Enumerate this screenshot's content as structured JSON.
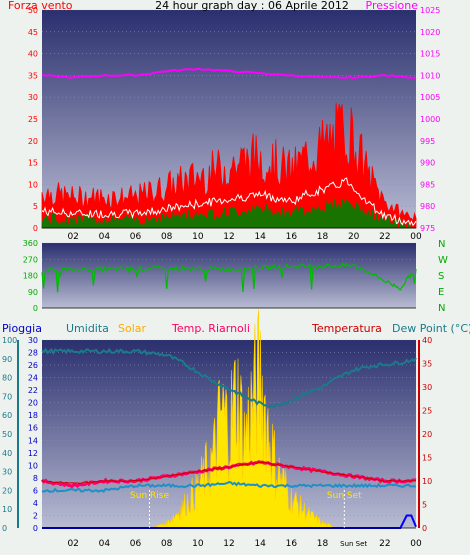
{
  "top": {
    "title": "24 hour graph day : 06 Aprile 2012",
    "left_label": "Forza vento",
    "right_label": "Pressione",
    "left_ticks": [
      "0",
      "5",
      "10",
      "15",
      "20",
      "25",
      "30",
      "35",
      "40",
      "45",
      "50"
    ],
    "right_ticks": [
      "975",
      "980",
      "985",
      "990",
      "995",
      "1000",
      "1005",
      "1010",
      "1015",
      "1020",
      "1025"
    ]
  },
  "middle": {
    "left_ticks": [
      "0",
      "90",
      "180",
      "270",
      "360"
    ],
    "compass": [
      "N",
      "W",
      "S",
      "E",
      "N"
    ]
  },
  "bottom": {
    "labels": {
      "pioggia": "Pioggia",
      "umidita": "Umidita",
      "solar": "Solar",
      "temp_riarnoli": "Temp. Riarnoli",
      "temperatura": "Temperatura",
      "dew_point": "Dew Point (°C)"
    },
    "hum_ticks": [
      "0",
      "10",
      "20",
      "30",
      "40",
      "50",
      "60",
      "70",
      "80",
      "90",
      "100"
    ],
    "left_ticks": [
      "0",
      "2",
      "4",
      "6",
      "8",
      "10",
      "12",
      "14",
      "16",
      "18",
      "20",
      "22",
      "24",
      "26",
      "28",
      "30"
    ],
    "right_ticks": [
      "0",
      "5",
      "10",
      "15",
      "20",
      "25",
      "30",
      "35",
      "40"
    ],
    "sun_rise": "Sun Rise",
    "sun_set": "Sun Set"
  },
  "x_ticks": [
    "02",
    "04",
    "06",
    "08",
    "10",
    "12",
    "14",
    "16",
    "18",
    "20",
    "22",
    "00"
  ],
  "x_ticks_bottom": [
    "02",
    "04",
    "06",
    "08",
    "10",
    "12",
    "14",
    "16",
    "18",
    "Sun Set",
    "22",
    "00"
  ],
  "colors": {
    "wind_gust": "#ff0000",
    "wind_avg": "#ffffff",
    "wind_low": "#008000",
    "pressure": "#ff00ff",
    "direction": "#00bb00",
    "humidity": "#1a7a8a",
    "solar": "#ffcc00",
    "temp_riarnoli": "#ff0066",
    "temperatura": "#cc0000",
    "dew_point": "#1e90c8",
    "rain": "#0000ff"
  },
  "chart_data": [
    {
      "type": "line",
      "title": "24 hour graph day : 06 Aprile 2012",
      "series": [
        {
          "name": "Forza vento",
          "x_hours": [
            0,
            2,
            4,
            6,
            8,
            10,
            12,
            14,
            16,
            17,
            18,
            19,
            19.5,
            20,
            21,
            22,
            23,
            24
          ],
          "values": [
            7,
            6,
            6,
            6,
            8,
            10,
            12,
            14,
            11,
            14,
            16,
            18,
            20,
            17,
            10,
            5,
            3,
            2
          ]
        },
        {
          "name": "Pressione",
          "x_hours": [
            0,
            2,
            4,
            6,
            8,
            10,
            12,
            14,
            16,
            18,
            20,
            22,
            24
          ],
          "values": [
            1010,
            1009.5,
            1010,
            1010,
            1011,
            1011.5,
            1011,
            1010.5,
            1010,
            1009.5,
            1009.5,
            1010,
            1009.5
          ]
        }
      ],
      "ylabel_left": "Forza vento",
      "ylim_left": [
        0,
        50
      ],
      "ylabel_right": "Pressione",
      "ylim_right": [
        975,
        1025
      ]
    },
    {
      "type": "line",
      "series": [
        {
          "name": "direction",
          "x_hours": [
            0,
            4,
            8,
            12,
            16,
            20,
            21,
            22,
            23,
            24
          ],
          "values": [
            210,
            215,
            220,
            215,
            230,
            235,
            200,
            150,
            110,
            225
          ]
        }
      ],
      "ylim": [
        0,
        360
      ]
    },
    {
      "type": "line",
      "series": [
        {
          "name": "Umidita",
          "x_hours": [
            0,
            2,
            4,
            6,
            7,
            8,
            9,
            10,
            11,
            12,
            13,
            14,
            15,
            16,
            17,
            18,
            19,
            20,
            21,
            22,
            23,
            24
          ],
          "values": [
            94,
            94,
            94,
            94,
            93,
            92,
            88,
            83,
            78,
            74,
            70,
            66,
            65,
            68,
            72,
            75,
            80,
            84,
            86,
            87,
            88,
            90
          ]
        },
        {
          "name": "Solar",
          "x_hours": [
            7,
            8,
            9,
            10,
            11,
            11.5,
            12,
            12.5,
            13,
            13.5,
            14,
            14.5,
            15,
            16,
            17,
            18,
            19
          ],
          "values": [
            0,
            1,
            4,
            8,
            14,
            23,
            20,
            27,
            18,
            25,
            30,
            20,
            12,
            6,
            3,
            1,
            0
          ]
        },
        {
          "name": "Temp. Riarnoli",
          "x_hours": [
            0,
            2,
            4,
            6,
            8,
            10,
            12,
            14,
            16,
            18,
            20,
            22,
            24
          ],
          "values": [
            10,
            9,
            10,
            10,
            11,
            12,
            13,
            14,
            13,
            12,
            11,
            10,
            10
          ]
        },
        {
          "name": "Temperatura",
          "x_hours": [
            0,
            2,
            4,
            6,
            8,
            10,
            12,
            14,
            16,
            18,
            20,
            22,
            24
          ],
          "values": [
            10,
            9.5,
            10,
            10,
            11,
            12,
            13,
            14,
            13,
            12,
            11,
            10,
            10
          ]
        },
        {
          "name": "Dew Point (°C)",
          "x_hours": [
            0,
            2,
            4,
            6,
            8,
            10,
            12,
            14,
            16,
            18,
            20,
            22,
            24
          ],
          "values": [
            8,
            8,
            8,
            9,
            9,
            9,
            9.5,
            9,
            9,
            9,
            9,
            9,
            9
          ]
        },
        {
          "name": "Pioggia",
          "x_hours": [
            0,
            22,
            23,
            23.4,
            23.7,
            24
          ],
          "values": [
            0,
            0,
            0,
            2,
            2,
            0.2
          ]
        }
      ],
      "ylabel_left": "Pioggia",
      "ylim_left": [
        0,
        30
      ],
      "ylabel_humidity": "Umidita",
      "ylim_humidity": [
        0,
        100
      ],
      "ylabel_right": "Temperatura",
      "ylim_right": [
        0,
        40
      ]
    }
  ]
}
